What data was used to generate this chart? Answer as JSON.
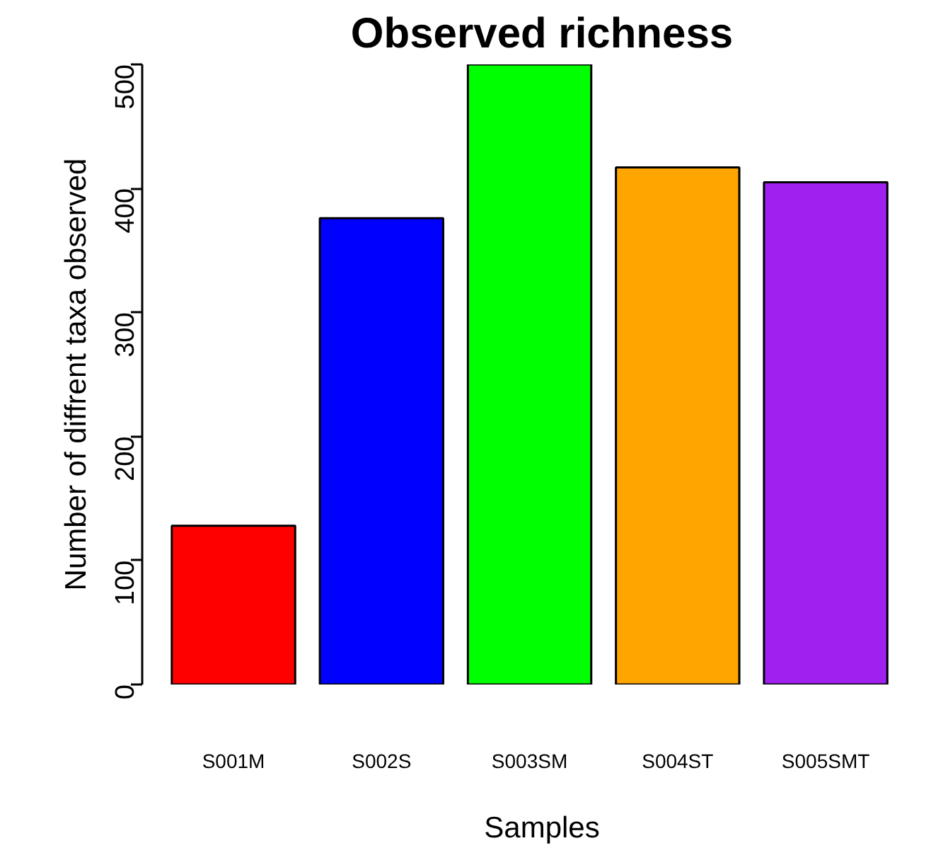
{
  "chart_data": {
    "type": "bar",
    "title": "Observed richness",
    "xlabel": "Samples",
    "ylabel": "Number of diffrent taxa observed",
    "categories": [
      "S001M",
      "S002S",
      "S003SM",
      "S004ST",
      "S005SMT"
    ],
    "colors": [
      "#ff0000",
      "#0000ff",
      "#00ff00",
      "#ffa500",
      "#a020f0"
    ],
    "values": [
      128,
      376,
      500,
      417,
      405
    ],
    "ylim": [
      0,
      500
    ],
    "yticks": [
      0,
      100,
      200,
      300,
      400,
      500
    ],
    "grid": false
  }
}
